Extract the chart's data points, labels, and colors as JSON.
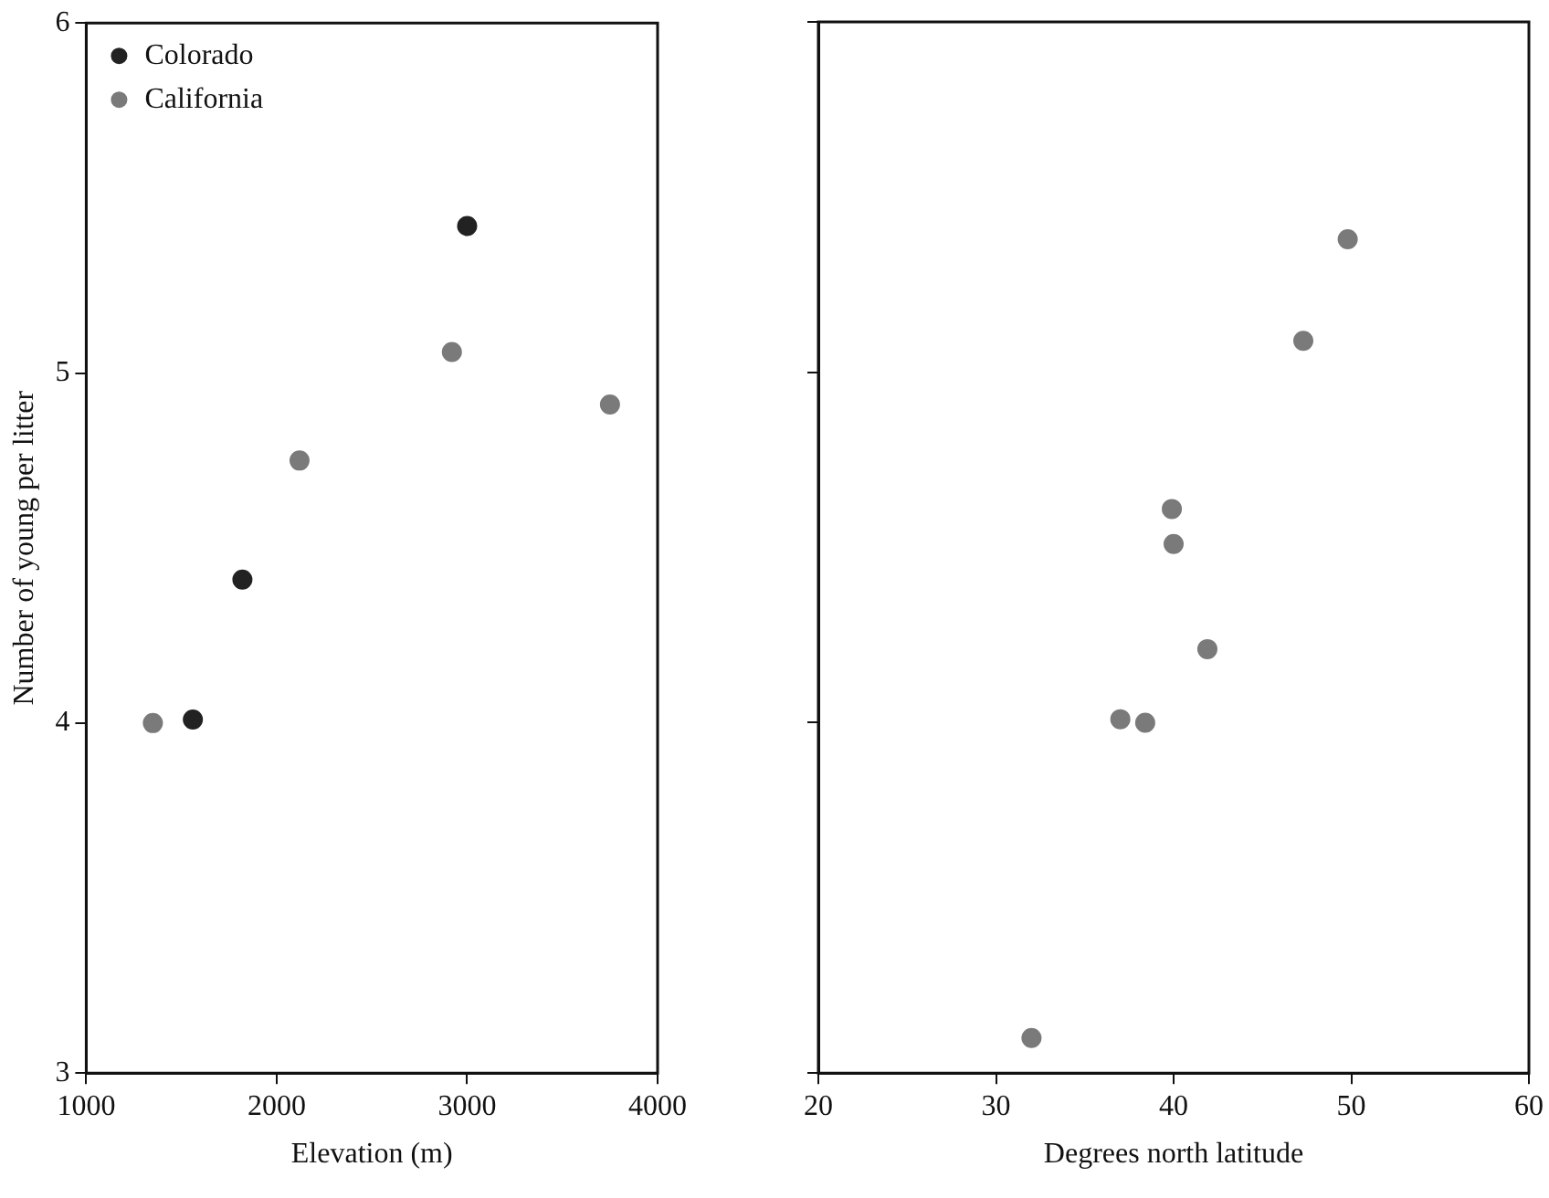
{
  "chart_data": [
    {
      "type": "scatter",
      "xlabel": "Elevation (m)",
      "ylabel": "Number of young per litter",
      "xlim": [
        1000,
        4000
      ],
      "xticks": [
        1000,
        2000,
        3000,
        4000
      ],
      "ylim": [
        3,
        6
      ],
      "yticks": [
        3,
        4,
        5,
        6
      ],
      "legend": "top left",
      "marker": "circle",
      "grid": false,
      "series": [
        {
          "name": "Colorado",
          "color": "#222222",
          "x": [
            1560,
            1820,
            3000
          ],
          "values": [
            4.01,
            4.41,
            5.42
          ]
        },
        {
          "name": "California",
          "color": "#7a7a7a",
          "x": [
            1350,
            2120,
            2920,
            3750
          ],
          "values": [
            4.0,
            4.75,
            5.06,
            4.91
          ]
        }
      ]
    },
    {
      "type": "scatter",
      "xlabel": "Degrees north latitude",
      "xlim": [
        20,
        60
      ],
      "xticks": [
        20,
        30,
        40,
        50,
        60
      ],
      "ylim": [
        3,
        6
      ],
      "yticks": [
        3,
        4,
        5,
        6
      ],
      "tick_labels": "x",
      "marker": "circle",
      "grid": false,
      "series": [
        {
          "color": "#7a7a7a",
          "x": [
            49.8,
            47.3,
            39.9,
            40.0,
            41.9,
            37.0,
            38.4,
            32.0
          ],
          "values": [
            5.38,
            5.09,
            4.61,
            4.51,
            4.21,
            4.01,
            4.0,
            3.1
          ]
        }
      ]
    }
  ]
}
